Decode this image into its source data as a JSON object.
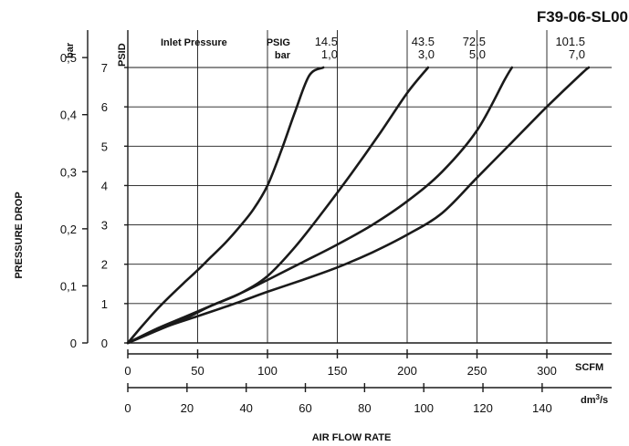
{
  "chart_data": {
    "type": "line",
    "title": "F39-06-SL00",
    "xlabel": "AIR FLOW RATE",
    "ylabel": "PRESSURE DROP",
    "x_primary": {
      "unit": "SCFM",
      "ticks": [
        "0",
        "50",
        "100",
        "150",
        "200",
        "250",
        "300"
      ],
      "range": [
        0,
        330
      ]
    },
    "x_secondary": {
      "unit": "dm³/s",
      "unit_base": "dm",
      "unit_sup": "3",
      "unit_tail": "/s",
      "ticks": [
        "0",
        "20",
        "40",
        "60",
        "80",
        "100",
        "120",
        "140"
      ]
    },
    "y_primary": {
      "unit": "PSID",
      "ticks": [
        "0",
        "1",
        "2",
        "3",
        "4",
        "5",
        "6",
        "7"
      ],
      "range": [
        0,
        7
      ]
    },
    "y_secondary": {
      "unit": "bar",
      "ticks": [
        "0",
        "0,1",
        "0,2",
        "0,3",
        "0,4",
        "0,5"
      ]
    },
    "legend_header": {
      "label": "Inlet Pressure",
      "psig_unit": "PSIG",
      "bar_unit": "bar"
    },
    "series": [
      {
        "inlet_psig": "14.5",
        "inlet_bar": "1,0",
        "x": [
          0,
          10,
          20,
          30,
          40,
          50,
          60,
          70,
          80,
          90,
          100,
          110,
          120,
          130,
          140
        ],
        "y": [
          0,
          0.42,
          0.82,
          1.18,
          1.52,
          1.85,
          2.2,
          2.55,
          2.95,
          3.4,
          4.0,
          4.9,
          5.9,
          6.8,
          7.0
        ]
      },
      {
        "inlet_psig": "43.5",
        "inlet_bar": "3,0",
        "x": [
          0,
          20,
          40,
          60,
          80,
          100,
          120,
          140,
          160,
          180,
          200,
          215
        ],
        "y": [
          0,
          0.3,
          0.6,
          0.95,
          1.25,
          1.7,
          2.45,
          3.35,
          4.3,
          5.3,
          6.35,
          7.0
        ]
      },
      {
        "inlet_psig": "72.5",
        "inlet_bar": "5,0",
        "x": [
          0,
          20,
          40,
          60,
          80,
          100,
          125,
          150,
          175,
          200,
          225,
          250,
          270,
          275
        ],
        "y": [
          0,
          0.35,
          0.65,
          0.95,
          1.25,
          1.6,
          2.05,
          2.5,
          3.0,
          3.6,
          4.35,
          5.4,
          6.7,
          7.0
        ]
      },
      {
        "inlet_psig": "101.5",
        "inlet_bar": "7,0",
        "x": [
          0,
          25,
          50,
          75,
          100,
          125,
          150,
          175,
          200,
          225,
          250,
          275,
          300,
          325,
          330
        ],
        "y": [
          0,
          0.38,
          0.68,
          0.98,
          1.3,
          1.6,
          1.92,
          2.3,
          2.75,
          3.3,
          4.2,
          5.1,
          6.0,
          6.85,
          7.0
        ]
      }
    ]
  }
}
